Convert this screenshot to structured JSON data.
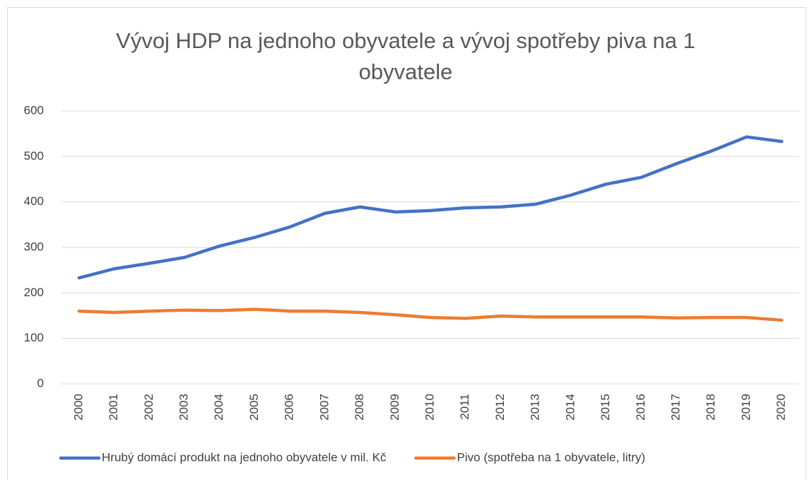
{
  "chart_data": {
    "type": "line",
    "title": "Vývoj HDP na jednoho obyvatele a vývoj spotřeby piva na 1 obyvatele",
    "categories": [
      "2000",
      "2001",
      "2002",
      "2003",
      "2004",
      "2005",
      "2006",
      "2007",
      "2008",
      "2009",
      "2010",
      "2011",
      "2012",
      "2013",
      "2014",
      "2015",
      "2016",
      "2017",
      "2018",
      "2019",
      "2020"
    ],
    "series": [
      {
        "name": "Hrubý domácí produkt na jednoho obyvatele v mil. Kč",
        "color": "#4472c4",
        "values": [
          233,
          253,
          265,
          278,
          303,
          322,
          345,
          375,
          389,
          378,
          381,
          387,
          389,
          395,
          415,
          439,
          454,
          484,
          512,
          543,
          533
        ]
      },
      {
        "name": "Pivo (spotřeba na 1 obyvatele, litry)",
        "color": "#ed7d31",
        "values": [
          160,
          157,
          160,
          162,
          161,
          164,
          160,
          160,
          157,
          152,
          146,
          144,
          149,
          147,
          147,
          147,
          147,
          145,
          146,
          146,
          140
        ]
      }
    ],
    "ylim": [
      0,
      600
    ],
    "yticks": [
      0,
      100,
      200,
      300,
      400,
      500,
      600
    ],
    "grid": true,
    "legend": "bottom"
  }
}
